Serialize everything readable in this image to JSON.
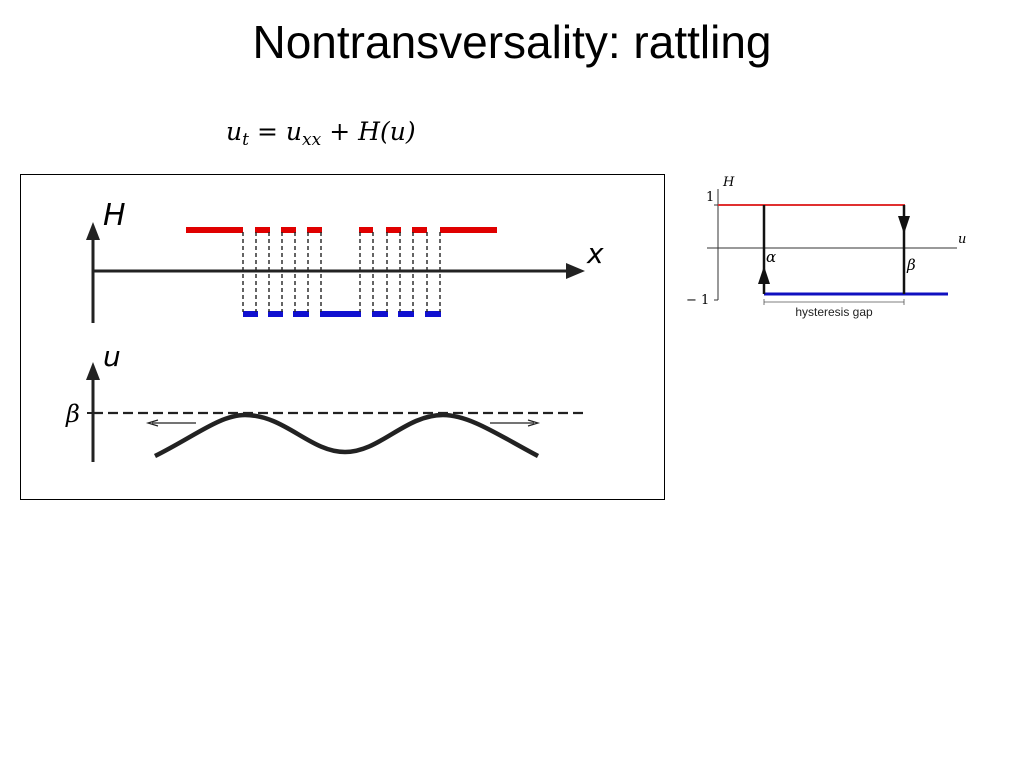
{
  "slide": {
    "title": "Nontransversality: rattling"
  },
  "equation": {
    "u": "u",
    "t_sub": "t",
    "equals": "=",
    "u2": "u",
    "xx_sub": "xx",
    "plus": "+",
    "rhs": "H(u)"
  },
  "left_figure": {
    "h_axis_label": "H",
    "x_axis_label": "x",
    "u_axis_label": "u",
    "beta_label": "β",
    "h_high_color": "#e00000",
    "h_low_color": "#1010d0"
  },
  "hysteresis": {
    "h_label": "H",
    "u_label": "u",
    "y_high_tick": "1",
    "y_low_tick": "− 1",
    "alpha_label": "α",
    "beta_label": "β",
    "gap_label": "hysteresis gap",
    "upper_color": "#e03030",
    "lower_color": "#1010c0"
  }
}
